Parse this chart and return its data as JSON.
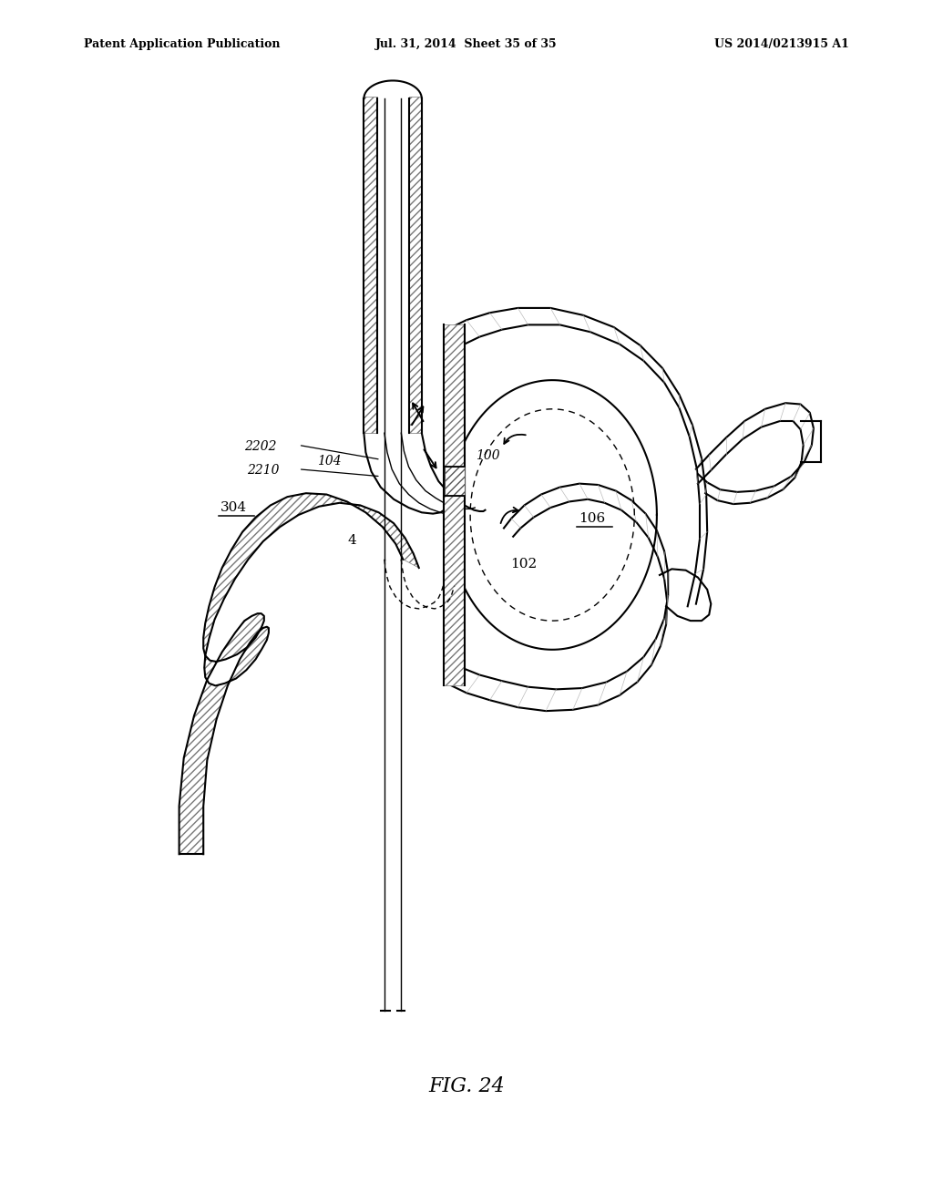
{
  "title_left": "Patent Application Publication",
  "title_mid": "Jul. 31, 2014  Sheet 35 of 35",
  "title_right": "US 2014/0213915 A1",
  "fig_label": "FIG. 24",
  "background_color": "#ffffff",
  "line_color": "#000000",
  "hatch_color": "#888888"
}
